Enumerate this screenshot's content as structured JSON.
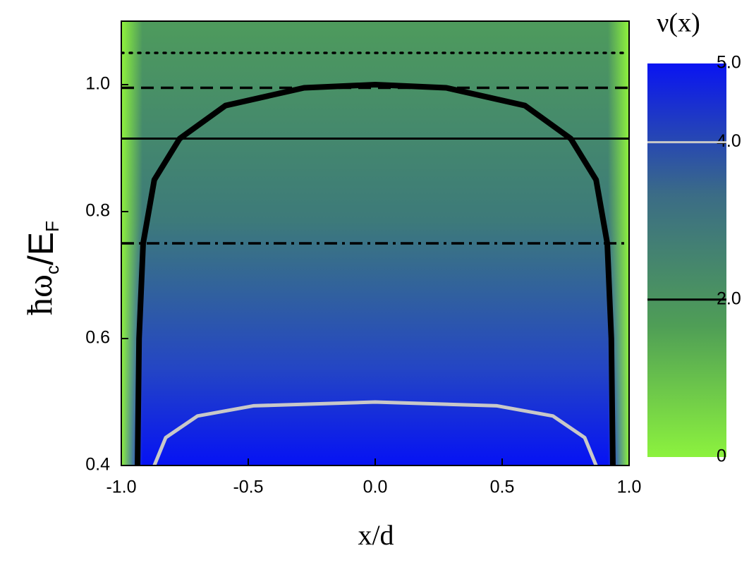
{
  "chart_data": {
    "type": "contour",
    "xlabel": "x/d",
    "ylabel": [
      "ħω",
      "c",
      "/E",
      "F"
    ],
    "xlim": [
      -1.0,
      1.0
    ],
    "ylim": [
      0.4,
      1.1
    ],
    "xticks": [
      {
        "value": -1.0,
        "label": "-1.0"
      },
      {
        "value": -0.5,
        "label": "-0.5"
      },
      {
        "value": 0.0,
        "label": "0.0"
      },
      {
        "value": 0.5,
        "label": "0.5"
      },
      {
        "value": 1.0,
        "label": "1.0"
      }
    ],
    "yticks": [
      0.4,
      0.6,
      0.8,
      {
        "value": 1.0,
        "label": "1.0"
      }
    ],
    "series": [
      {
        "level": 2,
        "color": "#000000",
        "x": [
          -0.936,
          -0.93,
          -0.914,
          -0.87,
          -0.77,
          -0.59,
          -0.28,
          0.0,
          0.28,
          0.59,
          0.77,
          0.87,
          0.914,
          0.93,
          0.936
        ],
        "y": [
          0.4,
          0.6,
          0.75,
          0.85,
          0.915,
          0.967,
          0.995,
          1.0,
          0.995,
          0.967,
          0.915,
          0.85,
          0.75,
          0.6,
          0.4
        ]
      },
      {
        "level": 4,
        "color": "#c8c8c8",
        "x": [
          -0.87,
          -0.825,
          -0.7,
          -0.48,
          0.0,
          0.48,
          0.7,
          0.825,
          0.87
        ],
        "y": [
          0.4,
          0.444,
          0.478,
          0.494,
          0.5,
          0.494,
          0.478,
          0.444,
          0.4
        ]
      }
    ],
    "hlines": [
      {
        "value": 1.05,
        "dash": "3 9"
      },
      {
        "value": 0.995,
        "dash": "18 10"
      },
      {
        "value": 0.915,
        "dash": "none"
      },
      {
        "value": 0.75,
        "dash": "18 7 4 7"
      }
    ],
    "colorbar": {
      "title": "ν(x)",
      "lim": [
        0,
        5
      ],
      "ticks": [
        0,
        {
          "value": 2,
          "label": "2.0"
        },
        {
          "value": 4,
          "label": "4.0"
        },
        {
          "value": 5,
          "label": "5.0"
        }
      ],
      "colors": [
        "#8cf23e",
        "#4f9e56",
        "#3b6c86",
        "#0a14f2"
      ]
    }
  }
}
